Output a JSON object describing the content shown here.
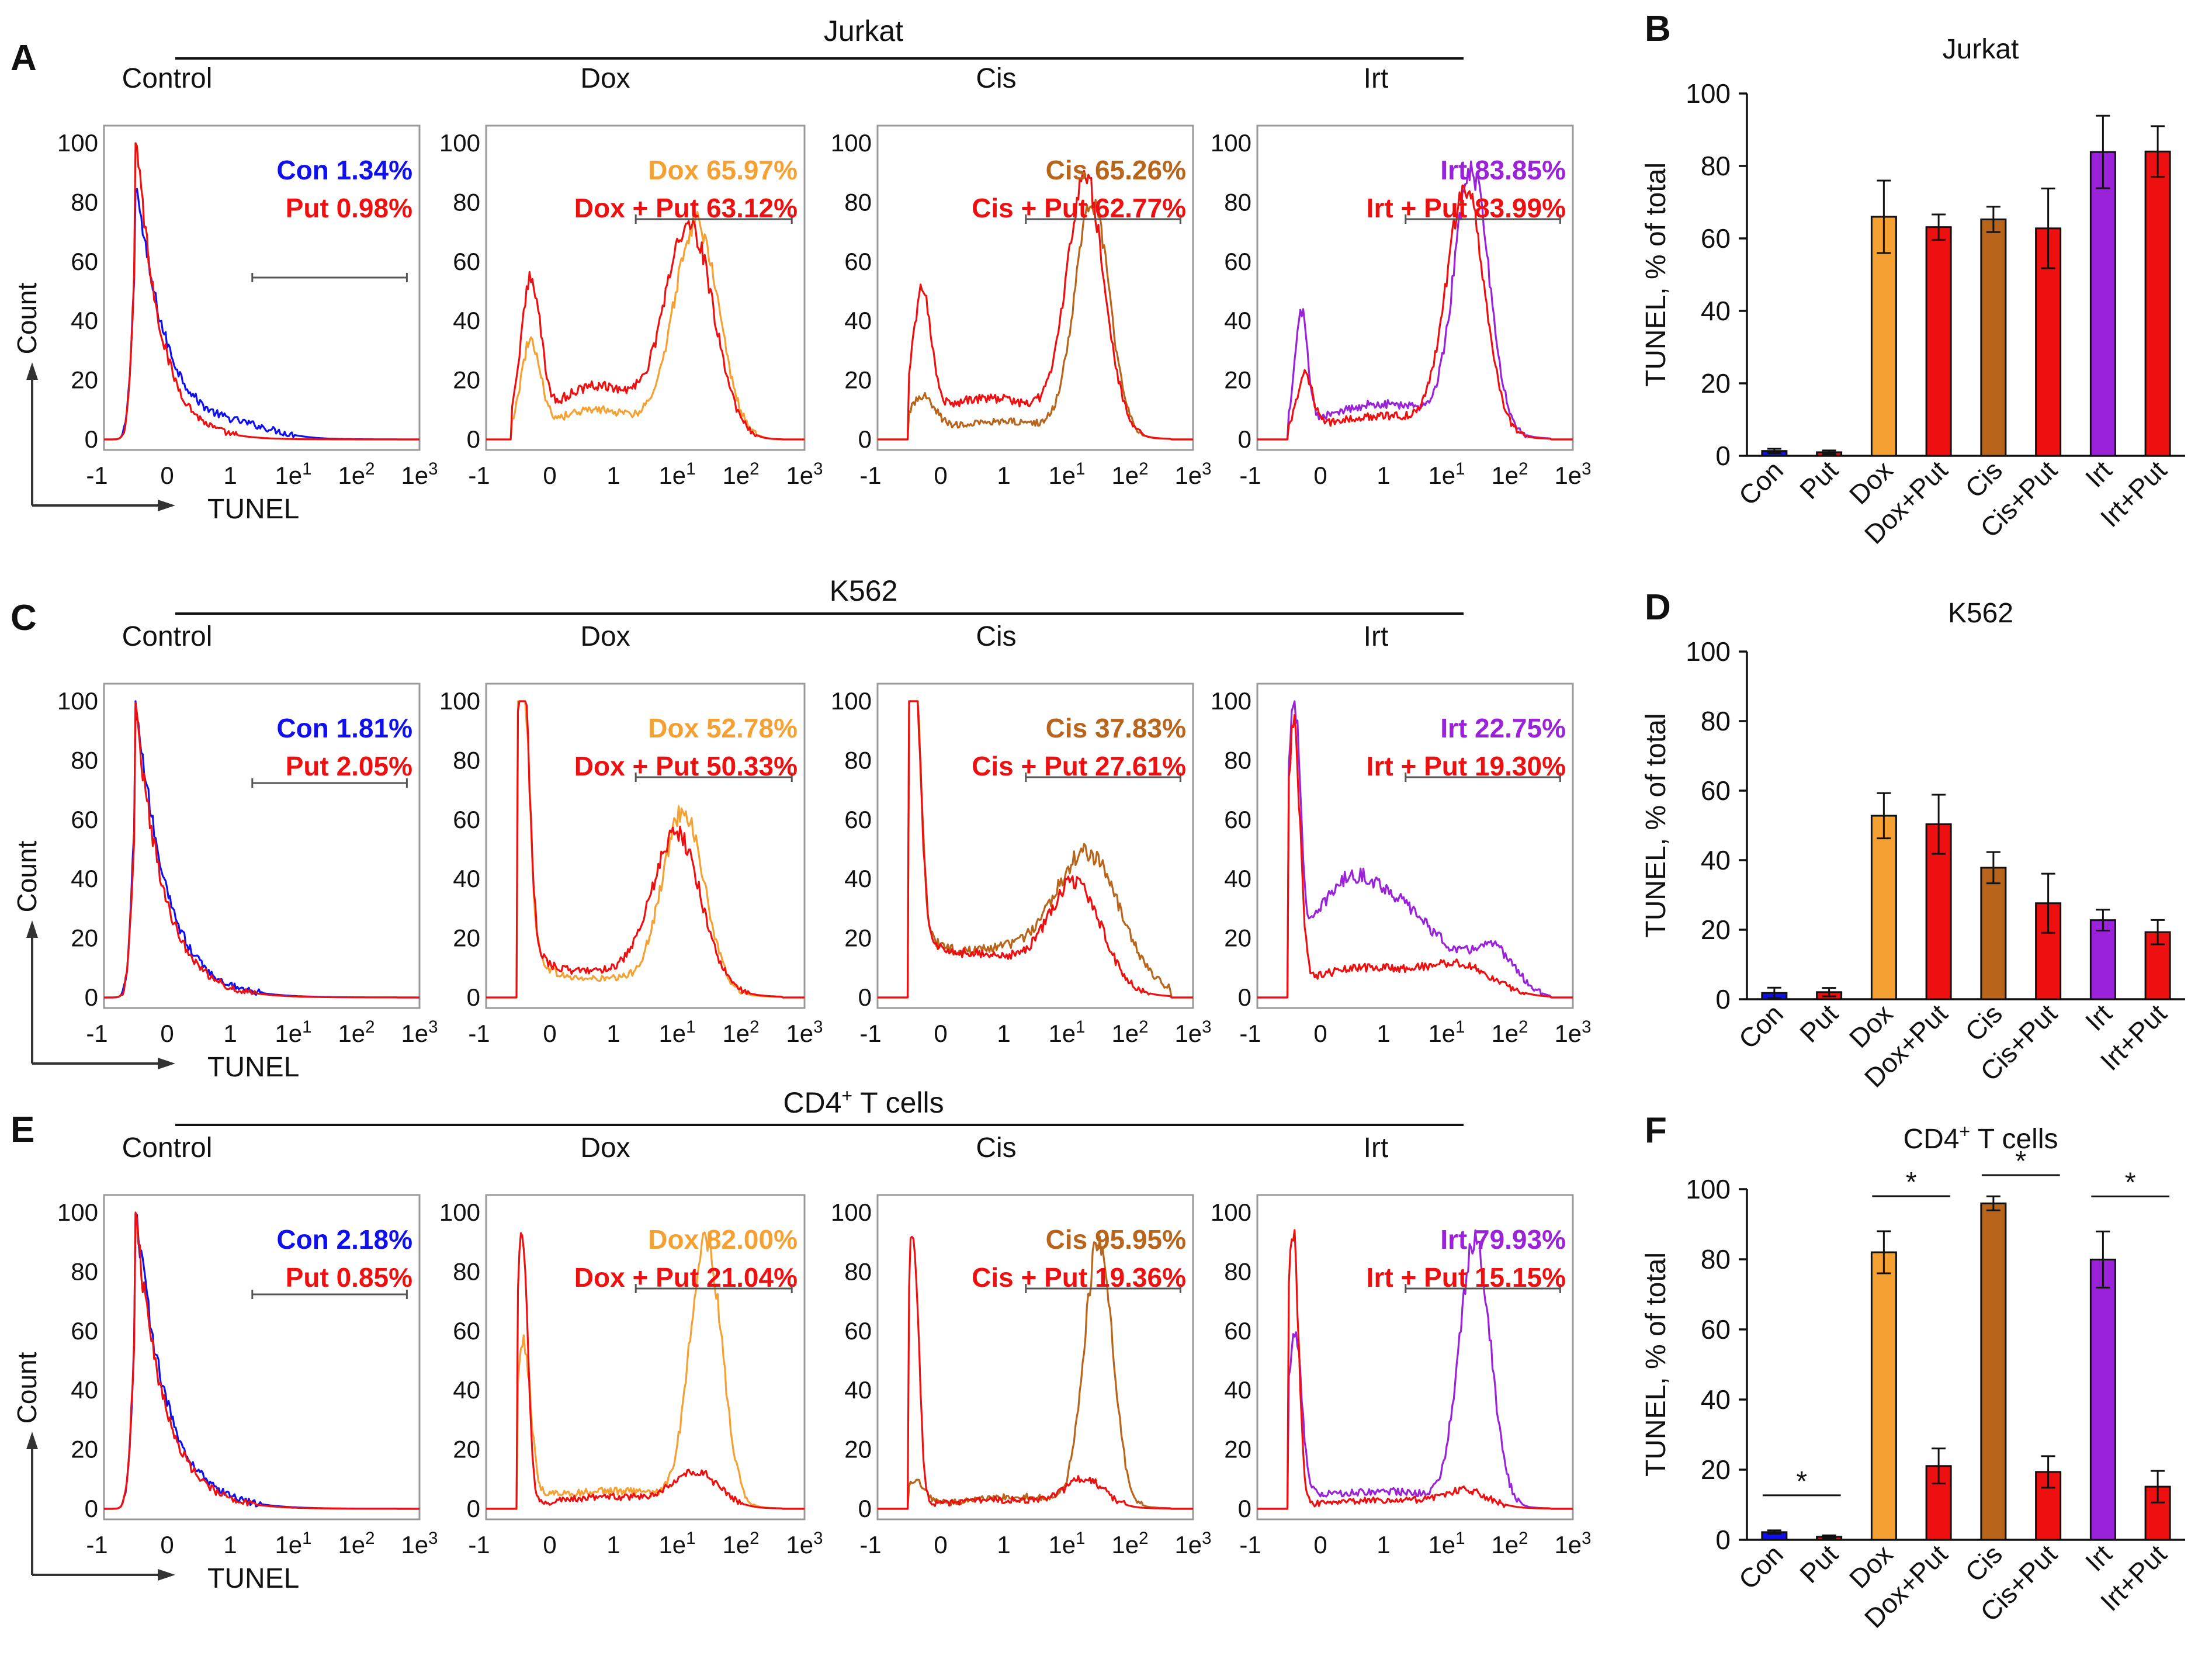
{
  "colors": {
    "control": "#1010ee",
    "put": "#ee1010",
    "dox": "#f5a033",
    "cis": "#b8641a",
    "irt": "#9a22d8",
    "axis": "#222222",
    "gate": "#555555"
  },
  "histogram_axes": {
    "x_ticks": [
      "-1",
      "0",
      "1",
      "1e1",
      "1e2",
      "1e3"
    ],
    "y_ticks": [
      "0",
      "20",
      "40",
      "60",
      "80",
      "100"
    ],
    "xlabel": "TUNEL",
    "ylabel": "Count"
  },
  "bar_axes": {
    "ylabel": "TUNEL, % of total",
    "y_ticks": [
      "0",
      "20",
      "40",
      "60",
      "80",
      "100"
    ],
    "categories": [
      "Con",
      "Put",
      "Dox",
      "Dox+Put",
      "Cis",
      "Cis+Put",
      "Irt",
      "Irt+Put"
    ]
  },
  "panel_groups": [
    {
      "letter": "A",
      "cell_line": "Jurkat",
      "superscript": "",
      "subplots": [
        {
          "title": "Control",
          "top_name": "Con",
          "top_value": "1.34%",
          "bottom_name": "Put",
          "bottom_value": "0.98%"
        },
        {
          "title": "Dox",
          "top_name": "Dox",
          "top_value": "65.97%",
          "bottom_name": "Dox + Put",
          "bottom_value": "63.12%"
        },
        {
          "title": "Cis",
          "top_name": "Cis",
          "top_value": "65.26%",
          "bottom_name": "Cis + Put",
          "bottom_value": "62.77%"
        },
        {
          "title": "Irt",
          "top_name": "Irt",
          "top_value": "83.85%",
          "bottom_name": "Irt + Put",
          "bottom_value": "83.99%"
        }
      ]
    },
    {
      "letter": "C",
      "cell_line": "K562",
      "superscript": "",
      "subplots": [
        {
          "title": "Control",
          "top_name": "Con",
          "top_value": "1.81%",
          "bottom_name": "Put",
          "bottom_value": "2.05%"
        },
        {
          "title": "Dox",
          "top_name": "Dox",
          "top_value": "52.78%",
          "bottom_name": "Dox + Put",
          "bottom_value": "50.33%"
        },
        {
          "title": "Cis",
          "top_name": "Cis",
          "top_value": "37.83%",
          "bottom_name": "Cis + Put",
          "bottom_value": "27.61%"
        },
        {
          "title": "Irt",
          "top_name": "Irt",
          "top_value": "22.75%",
          "bottom_name": "Irt + Put",
          "bottom_value": "19.30%"
        }
      ]
    },
    {
      "letter": "E",
      "cell_line": "CD4",
      "superscript": "+",
      "cell_line_suffix": " T cells",
      "subplots": [
        {
          "title": "Control",
          "top_name": "Con",
          "top_value": "2.18%",
          "bottom_name": "Put",
          "bottom_value": "0.85%"
        },
        {
          "title": "Dox",
          "top_name": "Dox",
          "top_value": "82.00%",
          "bottom_name": "Dox + Put",
          "bottom_value": "21.04%"
        },
        {
          "title": "Cis",
          "top_name": "Cis",
          "top_value": "95.95%",
          "bottom_name": "Cis + Put",
          "bottom_value": "19.36%"
        },
        {
          "title": "Irt",
          "top_name": "Irt",
          "top_value": "79.93%",
          "bottom_name": "Irt + Put",
          "bottom_value": "15.15%"
        }
      ]
    }
  ],
  "chart_data": [
    {
      "panel": "B",
      "type": "bar",
      "title": "Jurkat",
      "ylabel": "TUNEL, % of total",
      "ylim": [
        0,
        100
      ],
      "categories": [
        "Con",
        "Put",
        "Dox",
        "Dox+Put",
        "Cis",
        "Cis+Put",
        "Irt",
        "Irt+Put"
      ],
      "values": [
        1.34,
        0.98,
        65.97,
        63.12,
        65.26,
        62.77,
        83.85,
        83.99
      ],
      "errors": [
        0.6,
        0.5,
        10,
        3.5,
        3.5,
        11,
        10,
        7
      ],
      "significance": []
    },
    {
      "panel": "D",
      "type": "bar",
      "title": "K562",
      "ylabel": "TUNEL, % of total",
      "ylim": [
        0,
        100
      ],
      "categories": [
        "Con",
        "Put",
        "Dox",
        "Dox+Put",
        "Cis",
        "Cis+Put",
        "Irt",
        "Irt+Put"
      ],
      "values": [
        1.81,
        2.05,
        52.78,
        50.33,
        37.83,
        27.61,
        22.75,
        19.3
      ],
      "errors": [
        1.5,
        1.2,
        6.5,
        8.5,
        4.5,
        8.5,
        3,
        3.5
      ],
      "significance": []
    },
    {
      "panel": "F",
      "type": "bar",
      "title": "CD4+ T cells",
      "ylabel": "TUNEL, % of total",
      "ylim": [
        0,
        100
      ],
      "categories": [
        "Con",
        "Put",
        "Dox",
        "Dox+Put",
        "Cis",
        "Cis+Put",
        "Irt",
        "Irt+Put"
      ],
      "values": [
        2.18,
        0.85,
        82.0,
        21.04,
        95.95,
        19.36,
        79.93,
        15.15
      ],
      "errors": [
        0.5,
        0.4,
        6,
        5,
        2,
        4.5,
        8,
        4.5
      ],
      "significance": [
        {
          "from": 0,
          "to": 1,
          "label": "*"
        },
        {
          "from": 2,
          "to": 3,
          "label": "*"
        },
        {
          "from": 4,
          "to": 5,
          "label": "*"
        },
        {
          "from": 6,
          "to": 7,
          "label": "*"
        }
      ]
    }
  ]
}
